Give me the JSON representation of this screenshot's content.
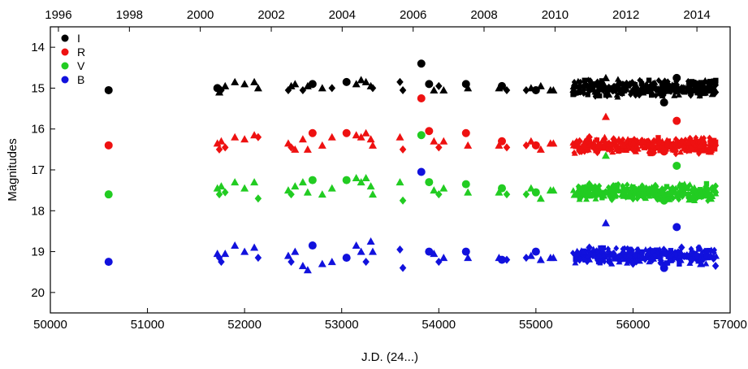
{
  "chart_data": {
    "type": "scatter",
    "xlabel": "J.D. (24...)",
    "ylabel": "Magnitudes",
    "xlim": [
      50000,
      57000
    ],
    "ylim": [
      20.5,
      13.5
    ],
    "y_inverted": true,
    "x_ticks": [
      50000,
      51000,
      52000,
      53000,
      54000,
      55000,
      56000,
      57000
    ],
    "x_tick_labels": [
      "50000",
      "51000",
      "52000",
      "53000",
      "54000",
      "55000",
      "56000",
      "57000"
    ],
    "y_ticks": [
      14,
      15,
      16,
      17,
      18,
      19,
      20
    ],
    "y_tick_labels": [
      "14",
      "15",
      "16",
      "17",
      "18",
      "19",
      "20"
    ],
    "top_axis": {
      "ticks": [
        1996,
        1998,
        2000,
        2002,
        2004,
        2006,
        2008,
        2010,
        2012,
        2014
      ],
      "tick_labels": [
        "1996",
        "1998",
        "2000",
        "2002",
        "2004",
        "2006",
        "2008",
        "2010",
        "2012",
        "2014"
      ],
      "tick_jd": [
        50083,
        50814,
        51544,
        52275,
        53005,
        53736,
        54466,
        55197,
        55927,
        56658
      ]
    },
    "grid": false,
    "legend_position": "top-left",
    "series": [
      {
        "name": "I",
        "color": "#000000",
        "base": 15.0,
        "points": [
          [
            50600,
            15.05,
            "c"
          ],
          [
            51720,
            15.0,
            "c"
          ],
          [
            51740,
            15.1,
            "t"
          ],
          [
            51760,
            15.05,
            "d"
          ],
          [
            51800,
            14.95,
            "t"
          ],
          [
            51900,
            14.85,
            "t"
          ],
          [
            52000,
            14.9,
            "t"
          ],
          [
            52100,
            14.85,
            "t"
          ],
          [
            52140,
            15.0,
            "t"
          ],
          [
            52450,
            15.05,
            "d"
          ],
          [
            52480,
            14.95,
            "t"
          ],
          [
            52520,
            14.9,
            "t"
          ],
          [
            52600,
            15.05,
            "d"
          ],
          [
            52650,
            14.95,
            "t"
          ],
          [
            52700,
            14.9,
            "c"
          ],
          [
            52800,
            15.0,
            "t"
          ],
          [
            52900,
            15.0,
            "d"
          ],
          [
            53050,
            14.85,
            "c"
          ],
          [
            53150,
            14.9,
            "t"
          ],
          [
            53200,
            14.8,
            "t"
          ],
          [
            53250,
            14.85,
            "t"
          ],
          [
            53300,
            14.95,
            "t"
          ],
          [
            53320,
            15.0,
            "d"
          ],
          [
            53600,
            14.85,
            "d"
          ],
          [
            53630,
            15.05,
            "d"
          ],
          [
            53820,
            14.4,
            "c"
          ],
          [
            53900,
            14.9,
            "c"
          ],
          [
            53950,
            15.05,
            "t"
          ],
          [
            54000,
            14.95,
            "d"
          ],
          [
            54050,
            15.05,
            "t"
          ],
          [
            54280,
            14.9,
            "c"
          ],
          [
            54300,
            15.0,
            "t"
          ],
          [
            54620,
            15.0,
            "t"
          ],
          [
            54650,
            14.95,
            "c"
          ],
          [
            54700,
            15.05,
            "d"
          ],
          [
            54900,
            15.05,
            "d"
          ],
          [
            54950,
            15.0,
            "t"
          ],
          [
            55000,
            15.05,
            "c"
          ],
          [
            55050,
            14.95,
            "t"
          ],
          [
            55150,
            15.05,
            "t"
          ],
          [
            55180,
            15.05,
            "t"
          ],
          [
            55450,
            14.95,
            "d"
          ],
          [
            55550,
            15.05,
            "d"
          ],
          [
            55650,
            15.0,
            "t"
          ],
          [
            55720,
            14.75,
            "t"
          ],
          [
            55800,
            15.05,
            "d"
          ],
          [
            55900,
            15.05,
            "t"
          ],
          [
            56000,
            15.05,
            "d"
          ],
          [
            56100,
            15.1,
            "t"
          ],
          [
            56200,
            15.0,
            "d"
          ],
          [
            56320,
            15.35,
            "c"
          ],
          [
            56450,
            14.75,
            "c"
          ],
          [
            56500,
            15.0,
            "d"
          ],
          [
            56600,
            15.1,
            "d"
          ],
          [
            56700,
            15.1,
            "t"
          ],
          [
            56800,
            15.05,
            "t"
          ],
          [
            56850,
            15.1,
            "d"
          ]
        ]
      },
      {
        "name": "R",
        "color": "#ee1111",
        "base": 16.4,
        "points": [
          [
            50600,
            16.4,
            "c"
          ],
          [
            51720,
            16.35,
            "t"
          ],
          [
            51740,
            16.5,
            "d"
          ],
          [
            51760,
            16.3,
            "t"
          ],
          [
            51800,
            16.45,
            "d"
          ],
          [
            51900,
            16.2,
            "t"
          ],
          [
            52000,
            16.25,
            "t"
          ],
          [
            52100,
            16.15,
            "t"
          ],
          [
            52140,
            16.2,
            "d"
          ],
          [
            52450,
            16.35,
            "t"
          ],
          [
            52480,
            16.45,
            "d"
          ],
          [
            52520,
            16.5,
            "t"
          ],
          [
            52600,
            16.25,
            "t"
          ],
          [
            52650,
            16.5,
            "t"
          ],
          [
            52700,
            16.1,
            "c"
          ],
          [
            52800,
            16.4,
            "t"
          ],
          [
            52900,
            16.2,
            "t"
          ],
          [
            53050,
            16.1,
            "c"
          ],
          [
            53150,
            16.15,
            "t"
          ],
          [
            53200,
            16.2,
            "t"
          ],
          [
            53250,
            16.1,
            "t"
          ],
          [
            53300,
            16.25,
            "t"
          ],
          [
            53320,
            16.4,
            "t"
          ],
          [
            53600,
            16.2,
            "t"
          ],
          [
            53630,
            16.5,
            "d"
          ],
          [
            53820,
            15.25,
            "c"
          ],
          [
            53900,
            16.05,
            "c"
          ],
          [
            53950,
            16.3,
            "t"
          ],
          [
            54000,
            16.45,
            "d"
          ],
          [
            54050,
            16.3,
            "t"
          ],
          [
            54280,
            16.1,
            "c"
          ],
          [
            54300,
            16.4,
            "t"
          ],
          [
            54620,
            16.4,
            "t"
          ],
          [
            54650,
            16.3,
            "c"
          ],
          [
            54700,
            16.45,
            "d"
          ],
          [
            54900,
            16.4,
            "d"
          ],
          [
            54950,
            16.3,
            "t"
          ],
          [
            55000,
            16.4,
            "c"
          ],
          [
            55050,
            16.5,
            "t"
          ],
          [
            55150,
            16.35,
            "t"
          ],
          [
            55180,
            16.35,
            "t"
          ],
          [
            55450,
            16.3,
            "d"
          ],
          [
            55550,
            16.2,
            "d"
          ],
          [
            55650,
            16.4,
            "t"
          ],
          [
            55720,
            15.7,
            "t"
          ],
          [
            55800,
            16.25,
            "d"
          ],
          [
            55900,
            16.4,
            "t"
          ],
          [
            56000,
            16.5,
            "d"
          ],
          [
            56100,
            16.3,
            "t"
          ],
          [
            56200,
            16.4,
            "d"
          ],
          [
            56320,
            16.55,
            "c"
          ],
          [
            56450,
            15.8,
            "c"
          ],
          [
            56500,
            16.3,
            "d"
          ],
          [
            56600,
            16.5,
            "d"
          ],
          [
            56700,
            16.4,
            "t"
          ],
          [
            56800,
            16.5,
            "t"
          ],
          [
            56850,
            16.4,
            "d"
          ]
        ]
      },
      {
        "name": "V",
        "color": "#22cc22",
        "base": 17.55,
        "points": [
          [
            50600,
            17.6,
            "c"
          ],
          [
            51720,
            17.45,
            "t"
          ],
          [
            51740,
            17.6,
            "d"
          ],
          [
            51760,
            17.4,
            "t"
          ],
          [
            51800,
            17.55,
            "d"
          ],
          [
            51900,
            17.3,
            "t"
          ],
          [
            52000,
            17.45,
            "t"
          ],
          [
            52100,
            17.3,
            "t"
          ],
          [
            52140,
            17.7,
            "d"
          ],
          [
            52450,
            17.5,
            "t"
          ],
          [
            52480,
            17.6,
            "d"
          ],
          [
            52520,
            17.4,
            "t"
          ],
          [
            52600,
            17.3,
            "t"
          ],
          [
            52650,
            17.55,
            "t"
          ],
          [
            52700,
            17.25,
            "c"
          ],
          [
            52800,
            17.6,
            "t"
          ],
          [
            52900,
            17.45,
            "t"
          ],
          [
            53050,
            17.25,
            "c"
          ],
          [
            53150,
            17.2,
            "t"
          ],
          [
            53200,
            17.3,
            "t"
          ],
          [
            53250,
            17.2,
            "t"
          ],
          [
            53300,
            17.4,
            "t"
          ],
          [
            53320,
            17.6,
            "t"
          ],
          [
            53600,
            17.3,
            "t"
          ],
          [
            53630,
            17.75,
            "d"
          ],
          [
            53820,
            16.15,
            "c"
          ],
          [
            53900,
            17.3,
            "c"
          ],
          [
            53950,
            17.5,
            "t"
          ],
          [
            54000,
            17.6,
            "d"
          ],
          [
            54050,
            17.45,
            "t"
          ],
          [
            54280,
            17.35,
            "c"
          ],
          [
            54300,
            17.55,
            "t"
          ],
          [
            54620,
            17.55,
            "t"
          ],
          [
            54650,
            17.45,
            "c"
          ],
          [
            54700,
            17.6,
            "d"
          ],
          [
            54900,
            17.6,
            "d"
          ],
          [
            54950,
            17.45,
            "t"
          ],
          [
            55000,
            17.55,
            "c"
          ],
          [
            55050,
            17.7,
            "t"
          ],
          [
            55150,
            17.5,
            "t"
          ],
          [
            55180,
            17.5,
            "t"
          ],
          [
            55450,
            17.45,
            "d"
          ],
          [
            55550,
            17.35,
            "d"
          ],
          [
            55650,
            17.55,
            "t"
          ],
          [
            55720,
            16.65,
            "t"
          ],
          [
            55800,
            17.4,
            "d"
          ],
          [
            55900,
            17.55,
            "t"
          ],
          [
            56000,
            17.7,
            "d"
          ],
          [
            56100,
            17.45,
            "t"
          ],
          [
            56200,
            17.55,
            "d"
          ],
          [
            56320,
            17.75,
            "c"
          ],
          [
            56450,
            16.9,
            "c"
          ],
          [
            56500,
            17.45,
            "d"
          ],
          [
            56600,
            17.7,
            "d"
          ],
          [
            56700,
            17.6,
            "t"
          ],
          [
            56800,
            17.7,
            "t"
          ],
          [
            56850,
            17.55,
            "d"
          ]
        ]
      },
      {
        "name": "B",
        "color": "#1111dd",
        "base": 19.1,
        "points": [
          [
            50600,
            19.25,
            "c"
          ],
          [
            51720,
            19.05,
            "t"
          ],
          [
            51740,
            19.15,
            "d"
          ],
          [
            51760,
            19.25,
            "d"
          ],
          [
            51800,
            19.05,
            "t"
          ],
          [
            51900,
            18.85,
            "t"
          ],
          [
            52000,
            19.0,
            "t"
          ],
          [
            52100,
            18.9,
            "t"
          ],
          [
            52140,
            19.15,
            "d"
          ],
          [
            52450,
            19.1,
            "t"
          ],
          [
            52480,
            19.25,
            "d"
          ],
          [
            52520,
            19.0,
            "t"
          ],
          [
            52600,
            19.35,
            "t"
          ],
          [
            52650,
            19.45,
            "t"
          ],
          [
            52700,
            18.85,
            "c"
          ],
          [
            52800,
            19.3,
            "t"
          ],
          [
            52900,
            19.25,
            "t"
          ],
          [
            53050,
            19.15,
            "c"
          ],
          [
            53150,
            18.85,
            "t"
          ],
          [
            53200,
            19.0,
            "t"
          ],
          [
            53250,
            19.25,
            "d"
          ],
          [
            53300,
            18.75,
            "t"
          ],
          [
            53320,
            19.0,
            "t"
          ],
          [
            53600,
            18.95,
            "d"
          ],
          [
            53630,
            19.4,
            "d"
          ],
          [
            53820,
            17.05,
            "c"
          ],
          [
            53900,
            19.0,
            "c"
          ],
          [
            53950,
            19.05,
            "t"
          ],
          [
            54000,
            19.25,
            "d"
          ],
          [
            54050,
            19.15,
            "t"
          ],
          [
            54280,
            19.0,
            "c"
          ],
          [
            54300,
            19.15,
            "t"
          ],
          [
            54620,
            19.15,
            "t"
          ],
          [
            54650,
            19.2,
            "c"
          ],
          [
            54700,
            19.2,
            "d"
          ],
          [
            54900,
            19.15,
            "d"
          ],
          [
            54950,
            19.1,
            "t"
          ],
          [
            55000,
            19.0,
            "c"
          ],
          [
            55050,
            19.2,
            "t"
          ],
          [
            55150,
            19.15,
            "t"
          ],
          [
            55180,
            19.15,
            "t"
          ],
          [
            55450,
            19.2,
            "d"
          ],
          [
            55550,
            18.9,
            "d"
          ],
          [
            55650,
            19.1,
            "t"
          ],
          [
            55720,
            18.3,
            "t"
          ],
          [
            55800,
            19.05,
            "d"
          ],
          [
            55900,
            19.0,
            "t"
          ],
          [
            56000,
            19.3,
            "d"
          ],
          [
            56100,
            19.15,
            "t"
          ],
          [
            56200,
            19.2,
            "d"
          ],
          [
            56320,
            19.4,
            "c"
          ],
          [
            56450,
            18.4,
            "c"
          ],
          [
            56500,
            18.9,
            "d"
          ],
          [
            56600,
            19.2,
            "d"
          ],
          [
            56700,
            19.3,
            "t"
          ],
          [
            56800,
            19.1,
            "t"
          ],
          [
            56850,
            19.35,
            "d"
          ]
        ]
      }
    ],
    "legend": [
      "I",
      "R",
      "V",
      "B"
    ]
  }
}
